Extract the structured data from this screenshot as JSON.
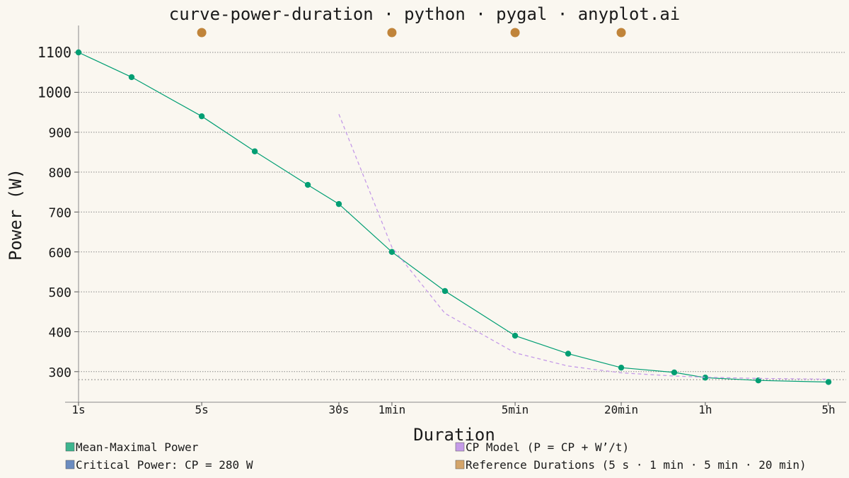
{
  "chart_data": {
    "type": "line",
    "title": "curve-power-duration · python · pygal · anyplot.ai",
    "xlabel": "Duration",
    "ylabel": "Power (W)",
    "x_scale": "log",
    "x_unit": "seconds",
    "x_ticks": [
      {
        "value": 1,
        "label": "1s"
      },
      {
        "value": 5,
        "label": "5s"
      },
      {
        "value": 30,
        "label": "30s"
      },
      {
        "value": 60,
        "label": "1min"
      },
      {
        "value": 300,
        "label": "5min"
      },
      {
        "value": 1200,
        "label": "20min"
      },
      {
        "value": 3600,
        "label": "1h"
      },
      {
        "value": 18000,
        "label": "5h"
      }
    ],
    "y_ticks": [
      300,
      400,
      500,
      600,
      700,
      800,
      900,
      1000,
      1100
    ],
    "ylim": [
      240,
      1170
    ],
    "grid": {
      "horizontal": true,
      "vertical": false
    },
    "legend_position": "bottom",
    "critical_power": 280,
    "series": [
      {
        "name": "Mean-Maximal Power",
        "color": "#009e73",
        "x": [
          1,
          2,
          5,
          10,
          20,
          30,
          60,
          120,
          300,
          600,
          1200,
          2400,
          3600,
          7200,
          18000
        ],
        "y": [
          1100,
          1038,
          940,
          852,
          768,
          720,
          600,
          502,
          390,
          345,
          310,
          298,
          285,
          278,
          274
        ]
      },
      {
        "name": "CP Model (P = CP + W’/t)",
        "color": "#c59be8",
        "dashed": true,
        "x": [
          30,
          60,
          120,
          300,
          600,
          1200,
          2400,
          3600,
          7200,
          18000
        ],
        "y": [
          945,
          612,
          446,
          347,
          314,
          297,
          289,
          286,
          283,
          281
        ]
      }
    ],
    "reference_points": {
      "name": "Reference Durations (5 s · 1 min · 5 min · 20 min)",
      "color": "#c0843a",
      "x": [
        5,
        60,
        300,
        1200
      ]
    },
    "legend": [
      {
        "label": "Mean-Maximal Power",
        "color": "#3db58e"
      },
      {
        "label": "CP Model (P = CP + W’/t)",
        "color": "#c59be8"
      },
      {
        "label": "Critical Power: CP = 280 W",
        "color": "#6b8cc0"
      },
      {
        "label": "Reference Durations (5 s · 1 min · 5 min · 20 min)",
        "color": "#d4a56a"
      }
    ]
  }
}
